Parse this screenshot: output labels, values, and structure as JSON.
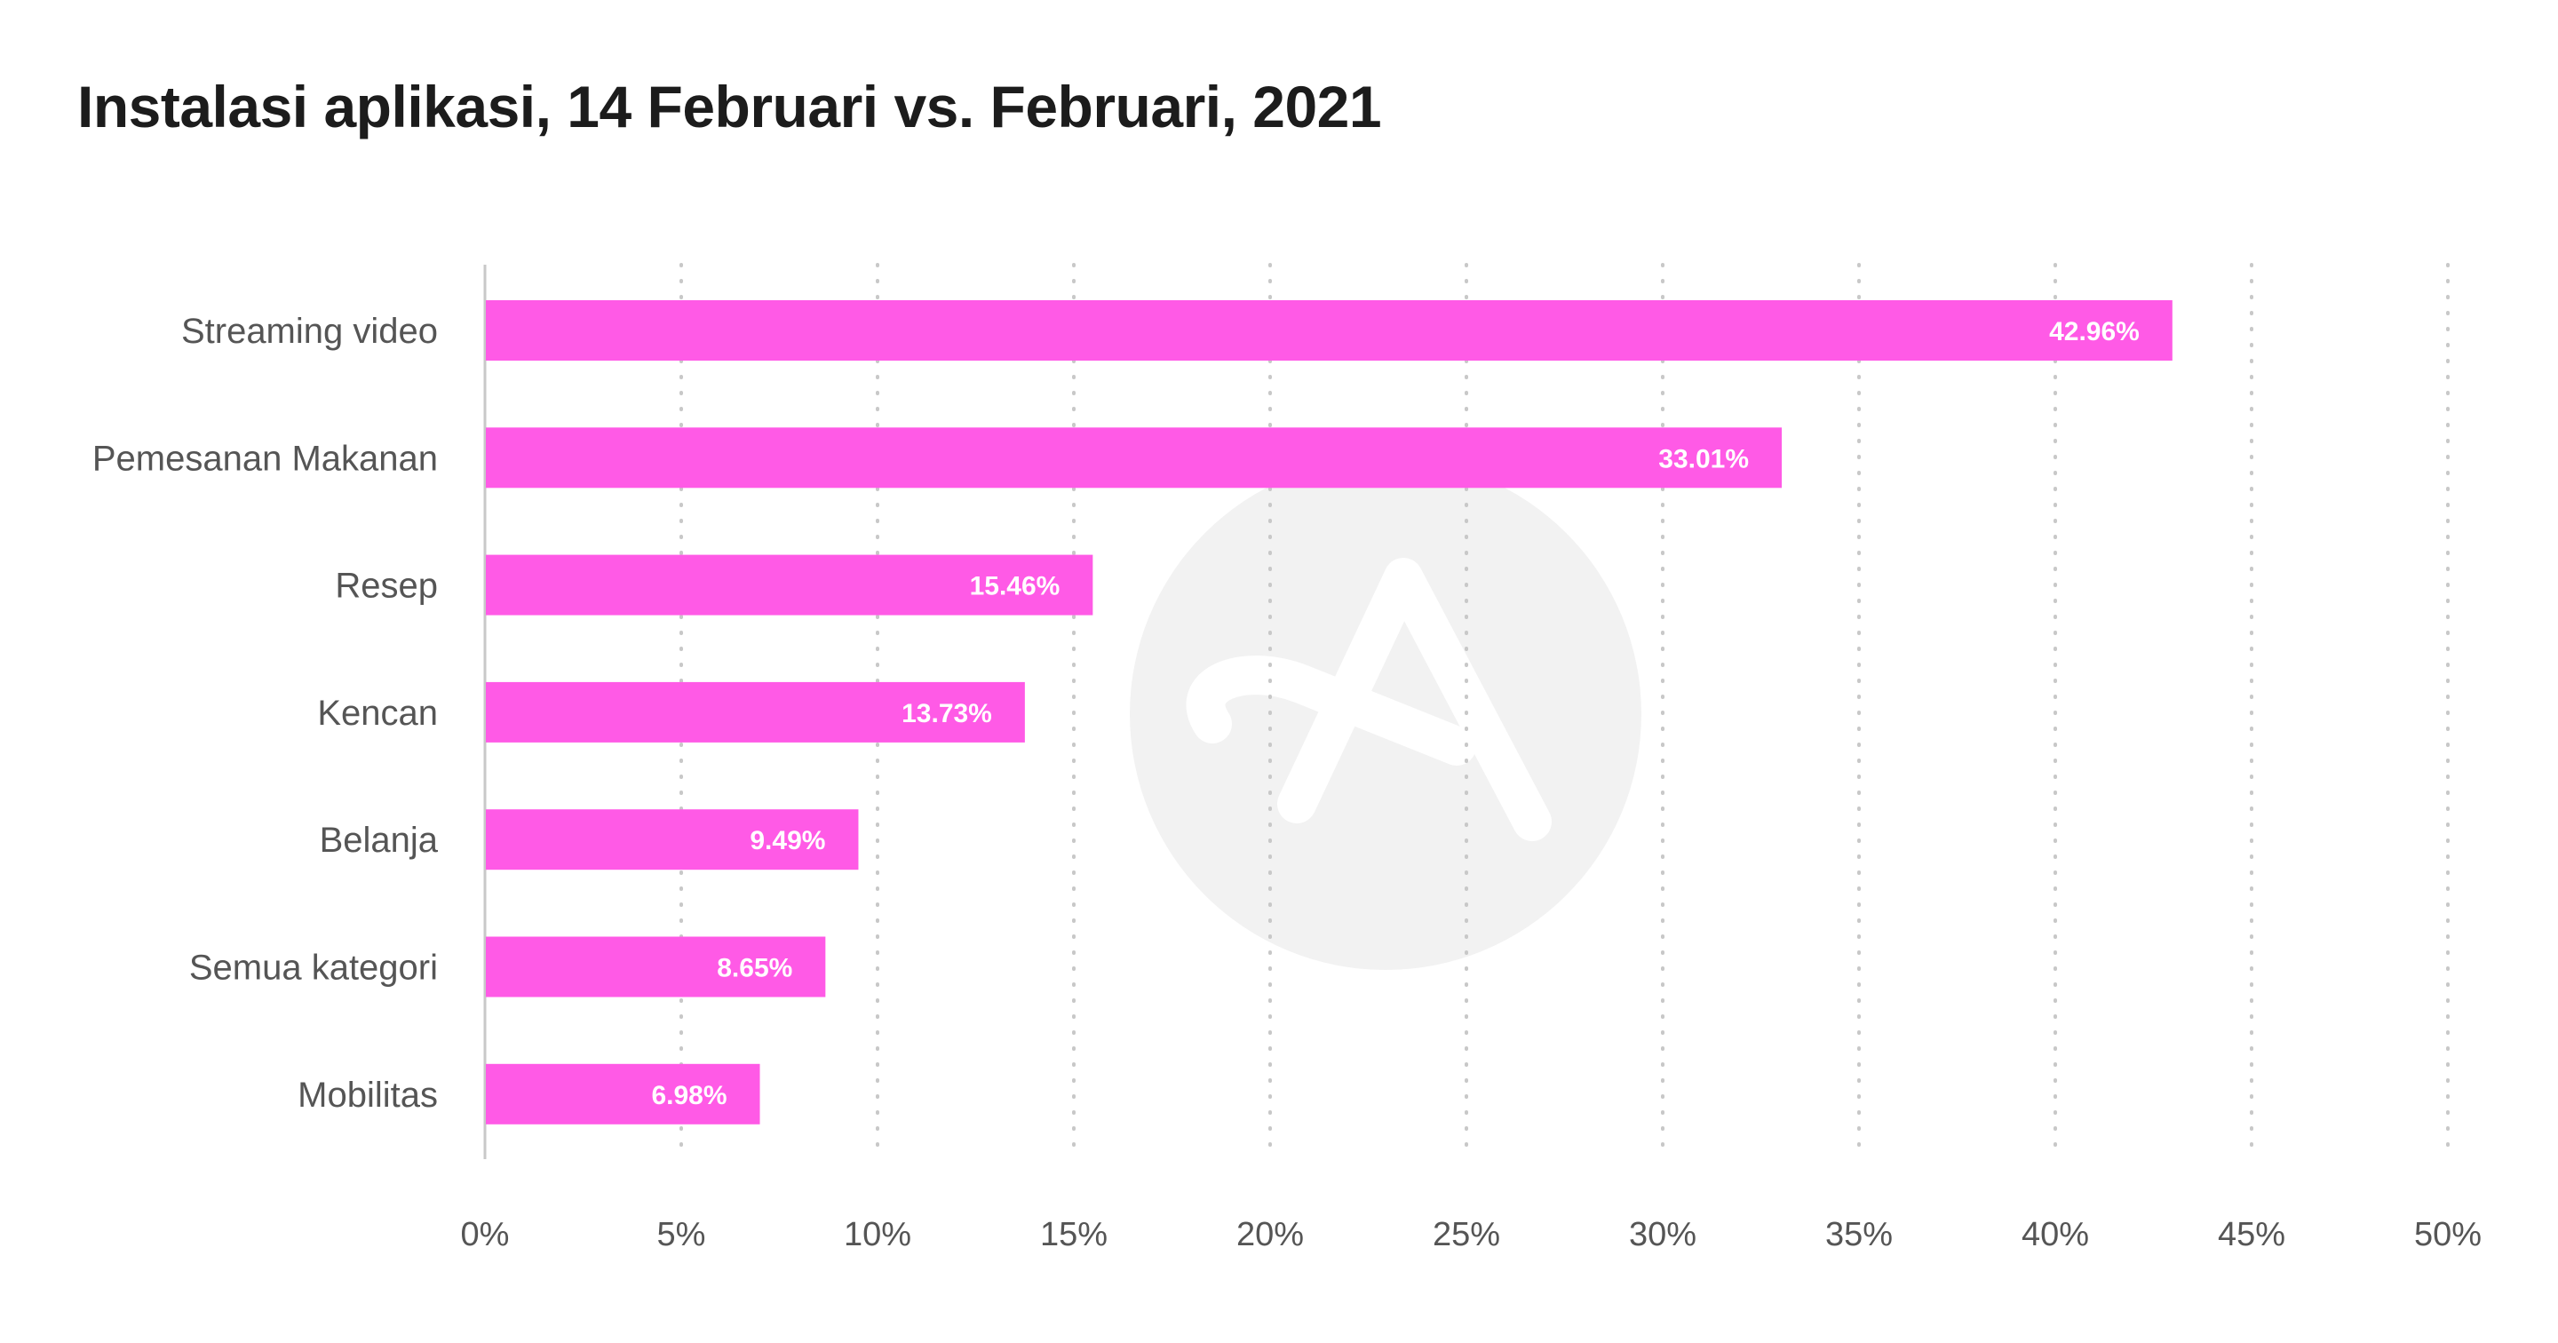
{
  "title": "Instalasi aplikasi, 14 Februari vs. Februari, 2021",
  "colors": {
    "bar": "#ff5ae6",
    "grid": "#c8c8c8",
    "axis": "#c8c8c8",
    "label": "#555555",
    "title": "#1c1c1c",
    "value": "#ffffff",
    "watermark": "#f2f2f2"
  },
  "watermark_icon": "adjust-logo-watermark",
  "chart_data": {
    "type": "bar",
    "orientation": "horizontal",
    "title": "Instalasi aplikasi, 14 Februari vs. Februari, 2021",
    "xlabel": "",
    "ylabel": "",
    "xlim": [
      0,
      50
    ],
    "grid": "vertical-dotted",
    "categories": [
      "Streaming video",
      "Pemesanan Makanan",
      "Resep",
      "Kencan",
      "Belanja",
      "Semua kategori",
      "Mobilitas"
    ],
    "values": [
      42.96,
      33.01,
      15.46,
      13.73,
      9.49,
      8.65,
      6.98
    ],
    "value_labels": [
      "42.96%",
      "33.01%",
      "15.46%",
      "13.73%",
      "9.49%",
      "8.65%",
      "6.98%"
    ],
    "ticks": [
      0,
      5,
      10,
      15,
      20,
      25,
      30,
      35,
      40,
      45,
      50
    ],
    "tick_labels": [
      "0%",
      "5%",
      "10%",
      "15%",
      "20%",
      "25%",
      "30%",
      "35%",
      "40%",
      "45%",
      "50%"
    ]
  }
}
